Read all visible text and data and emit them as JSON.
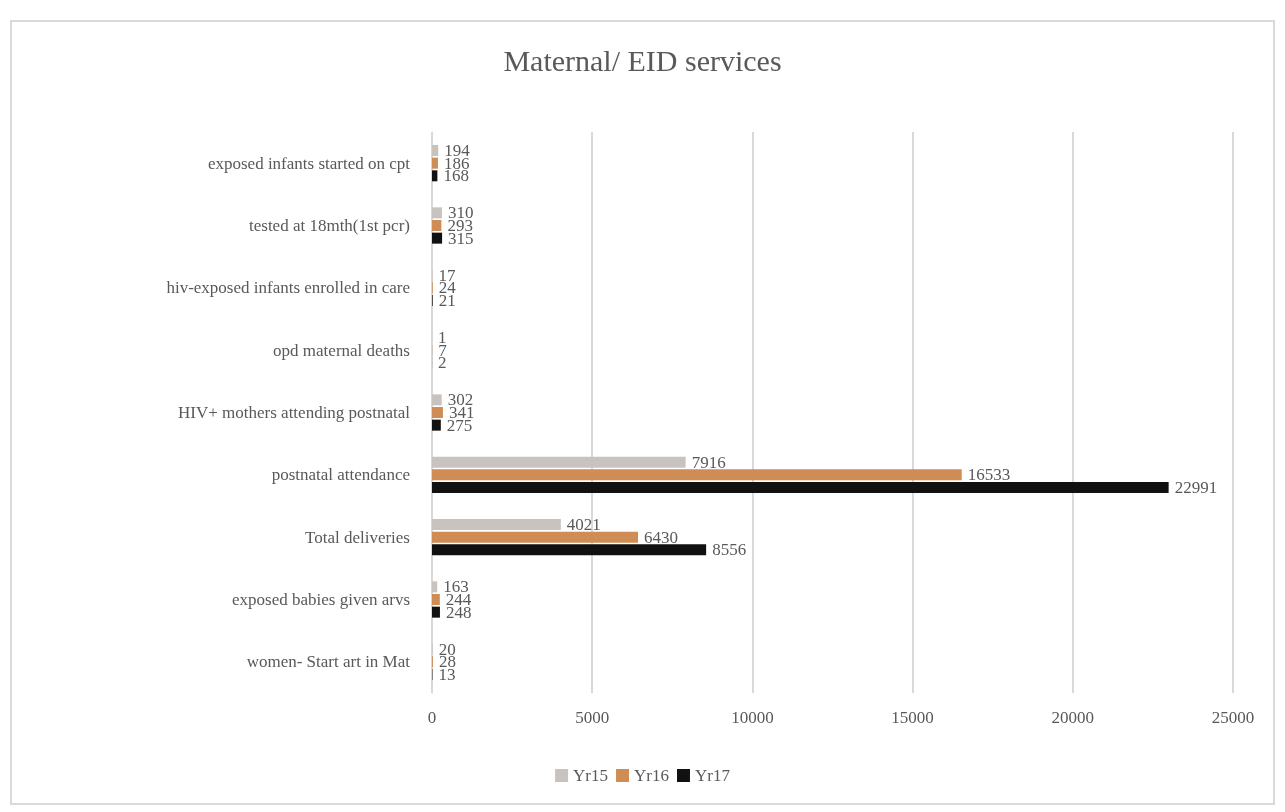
{
  "chart_data": {
    "type": "bar",
    "orientation": "horizontal",
    "title": "Maternal/ EID services",
    "categories": [
      "exposed infants started on cpt",
      "tested at 18mth(1st pcr)",
      "hiv-exposed infants enrolled in care",
      "opd maternal deaths",
      "HIV+ mothers attending postnatal",
      "postnatal attendance",
      "Total deliveries",
      "exposed babies given arvs",
      "women- Start art in Mat"
    ],
    "series": [
      {
        "name": "Yr15",
        "color": "#c9c3bf",
        "values": [
          194,
          310,
          17,
          1,
          302,
          7916,
          4021,
          163,
          20
        ]
      },
      {
        "name": "Yr16",
        "color": "#d08c55",
        "values": [
          186,
          293,
          24,
          7,
          341,
          16533,
          6430,
          244,
          28
        ]
      },
      {
        "name": "Yr17",
        "color": "#111111",
        "values": [
          168,
          315,
          21,
          2,
          275,
          22991,
          8556,
          248,
          13
        ]
      }
    ],
    "xlim": [
      0,
      25000
    ],
    "xticks": [
      0,
      5000,
      10000,
      15000,
      20000,
      25000
    ],
    "grid": "x",
    "legend": "bottom",
    "data_labels": true
  }
}
